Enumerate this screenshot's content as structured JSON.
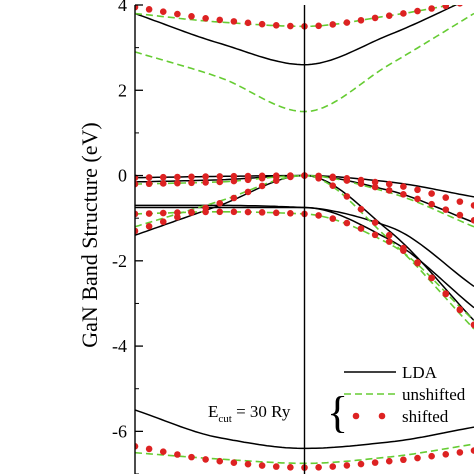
{
  "chart_data": {
    "type": "line",
    "ylabel": "GaN Band Structure (eV)",
    "ylim": [
      -7,
      4
    ],
    "xlim": [
      -1,
      1
    ],
    "yticks": [
      "-6",
      "-4",
      "-2",
      "0",
      "2",
      "4"
    ],
    "ytick_values": [
      -6,
      -4,
      -2,
      0,
      2,
      4
    ],
    "annotation": {
      "prefix": "E",
      "subscript": "cut",
      "suffix": " = 30 Ry",
      "brace": "{"
    },
    "legend": {
      "placement": "bottom-right",
      "entries": [
        {
          "label": "LDA",
          "style": "solid",
          "color": "#000000"
        },
        {
          "label": "unshifted",
          "style": "dashed",
          "color": "#66cc33"
        },
        {
          "label": "shifted",
          "style": "dots",
          "color": "#dd2222"
        }
      ]
    },
    "series": [
      {
        "label": "LDA",
        "style": "solid",
        "color": "#000000",
        "bands": [
          {
            "x": [
              -1,
              -0.5,
              0,
              0.5,
              1
            ],
            "y": [
              -5.5,
              -6.15,
              -6.4,
              -6.25,
              -5.9
            ]
          },
          {
            "x": [
              -1,
              -0.5,
              0,
              0.5,
              1
            ],
            "y": [
              -0.7,
              -0.7,
              -0.75,
              -1.2,
              -2.6
            ]
          },
          {
            "x": [
              -1,
              -0.5,
              0,
              0.5,
              1
            ],
            "y": [
              -0.75,
              -0.75,
              -0.75,
              -1.5,
              -3.1
            ]
          },
          {
            "x": [
              -1,
              -0.5,
              0,
              0.5,
              1
            ],
            "y": [
              -1.4,
              -0.7,
              0.0,
              -1.3,
              -3.4
            ]
          },
          {
            "x": [
              -1,
              -0.5,
              0,
              0.5,
              1
            ],
            "y": [
              -0.15,
              -0.1,
              0.0,
              -0.35,
              -1.1
            ]
          },
          {
            "x": [
              -1,
              -0.5,
              0,
              0.5,
              1
            ],
            "y": [
              -0.05,
              -0.02,
              0.0,
              -0.15,
              -0.5
            ]
          },
          {
            "x": [
              -1,
              -0.5,
              0,
              0.5,
              1
            ],
            "y": [
              3.8,
              3.1,
              2.6,
              3.3,
              4.2
            ]
          }
        ]
      },
      {
        "label": "unshifted",
        "style": "dashed",
        "color": "#66cc33",
        "bands": [
          {
            "x": [
              -1,
              -0.5,
              0,
              0.5,
              1
            ],
            "y": [
              2.9,
              2.3,
              1.5,
              2.6,
              3.8
            ]
          },
          {
            "x": [
              -1,
              -0.5,
              0,
              0.5,
              1
            ],
            "y": [
              3.8,
              3.6,
              3.5,
              3.75,
              4.1
            ]
          },
          {
            "x": [
              -1,
              -0.5,
              0,
              0.5,
              1
            ],
            "y": [
              -0.9,
              -0.85,
              -0.9,
              -1.6,
              -3.4
            ]
          },
          {
            "x": [
              -1,
              -0.5,
              0,
              0.5,
              1
            ],
            "y": [
              -1.2,
              -0.6,
              0.0,
              -1.5,
              -3.6
            ]
          },
          {
            "x": [
              -1,
              -0.5,
              0,
              0.5,
              1
            ],
            "y": [
              -0.2,
              -0.15,
              0.0,
              -0.4,
              -1.2
            ]
          },
          {
            "x": [
              -1,
              -0.5,
              0,
              0.5,
              1
            ],
            "y": [
              -6.5,
              -6.65,
              -6.75,
              -6.6,
              -6.3
            ]
          }
        ]
      },
      {
        "label": "shifted",
        "style": "dots",
        "color": "#dd2222",
        "bands": [
          {
            "x": [
              -1,
              -0.5,
              0,
              0.5,
              1
            ],
            "y": [
              -6.35,
              -6.7,
              -6.85,
              -6.7,
              -6.45
            ]
          },
          {
            "x": [
              -1,
              -0.5,
              0,
              0.5,
              1
            ],
            "y": [
              -0.9,
              -0.85,
              -0.9,
              -1.55,
              -3.5
            ]
          },
          {
            "x": [
              -1,
              -0.5,
              0,
              0.5,
              1
            ],
            "y": [
              -1.3,
              -0.65,
              0.0,
              -1.4,
              -3.5
            ]
          },
          {
            "x": [
              -1,
              -0.5,
              0,
              0.5,
              1
            ],
            "y": [
              -0.2,
              -0.15,
              0.0,
              -0.35,
              -1.05
            ]
          },
          {
            "x": [
              -1,
              -0.5,
              0,
              0.5,
              1
            ],
            "y": [
              -0.05,
              -0.02,
              0.0,
              -0.2,
              -0.7
            ]
          },
          {
            "x": [
              -1,
              -0.5,
              0,
              0.5,
              1
            ],
            "y": [
              3.95,
              3.65,
              3.5,
              3.75,
              4.1
            ]
          }
        ]
      }
    ]
  }
}
